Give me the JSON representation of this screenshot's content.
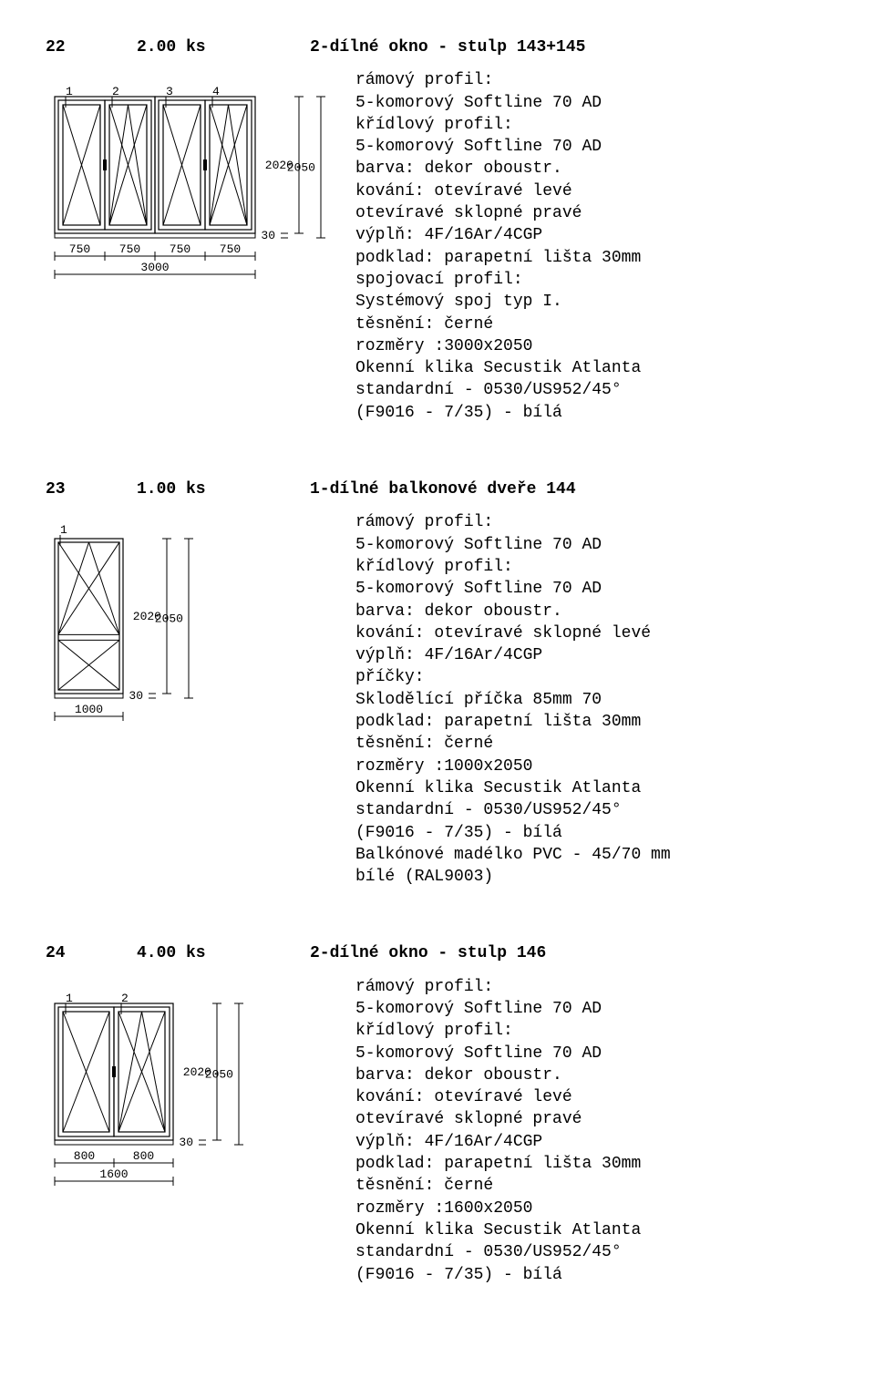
{
  "items": [
    {
      "index": "22",
      "qty": "2.00 ks",
      "title": "2-dílné okno - stulp  143+145",
      "diagram": {
        "type": "quad-window",
        "panes": [
          "1",
          "2",
          "3",
          "4"
        ],
        "bottom_dims": [
          "750",
          "750",
          "750",
          "750"
        ],
        "bottom_total": "3000",
        "side_h": "30",
        "side_dims": [
          "2020",
          "2050"
        ]
      },
      "specs": [
        "rámový profil:",
        "5-komorový Softline 70 AD",
        "křídlový profil:",
        "5-komorový Softline 70 AD",
        "barva: dekor oboustr.",
        "kování: otevíravé levé",
        "         otevíravé sklopné pravé",
        "výplň: 4F/16Ar/4CGP",
        "podklad: parapetní lišta 30mm",
        "spojovací profil:",
        "Systémový spoj typ I.",
        "těsnění: černé",
        "rozměry :3000x2050",
        "Okenní klika Secustik Atlanta",
        "standardní - 0530/US952/45°",
        "(F9016 - 7/35) - bílá"
      ]
    },
    {
      "index": "23",
      "qty": "1.00 ks",
      "title": "1-dílné balkonové dveře  144",
      "diagram": {
        "type": "single-door",
        "panes": [
          "1"
        ],
        "bottom_dims": [
          "1000"
        ],
        "bottom_total": "1000",
        "side_h": "30",
        "side_dims": [
          "2020",
          "2050"
        ]
      },
      "specs": [
        "rámový profil:",
        "5-komorový Softline 70 AD",
        "křídlový profil:",
        "5-komorový Softline 70 AD",
        "barva: dekor oboustr.",
        "kování: otevíravé sklopné levé",
        "výplň: 4F/16Ar/4CGP",
        "příčky:",
        "Sklodělící příčka 85mm        70",
        "podklad: parapetní lišta 30mm",
        "těsnění: černé",
        "rozměry :1000x2050",
        "Okenní klika Secustik Atlanta",
        "standardní - 0530/US952/45°",
        "(F9016 - 7/35) - bílá",
        "Balkónové madélko PVC -  45/70 mm",
        "bílé (RAL9003)"
      ]
    },
    {
      "index": "24",
      "qty": "4.00 ks",
      "title": "2-dílné okno - stulp  146",
      "diagram": {
        "type": "double-window",
        "panes": [
          "1",
          "2"
        ],
        "bottom_dims": [
          "800",
          "800"
        ],
        "bottom_total": "1600",
        "side_h": "30",
        "side_dims": [
          "2020",
          "2050"
        ]
      },
      "specs": [
        "rámový profil:",
        "5-komorový Softline 70 AD",
        "křídlový profil:",
        "5-komorový Softline 70 AD",
        "barva: dekor oboustr.",
        "kování: otevíravé levé",
        "         otevíravé sklopné pravé",
        "výplň: 4F/16Ar/4CGP",
        "podklad: parapetní lišta 30mm",
        "těsnění: černé",
        "rozměry :1600x2050",
        "Okenní klika Secustik Atlanta",
        "standardní - 0530/US952/45°",
        "(F9016 - 7/35) - bílá"
      ]
    }
  ],
  "style": {
    "stroke": "#000000",
    "stroke_width": 1.2,
    "frame_width": 6
  }
}
